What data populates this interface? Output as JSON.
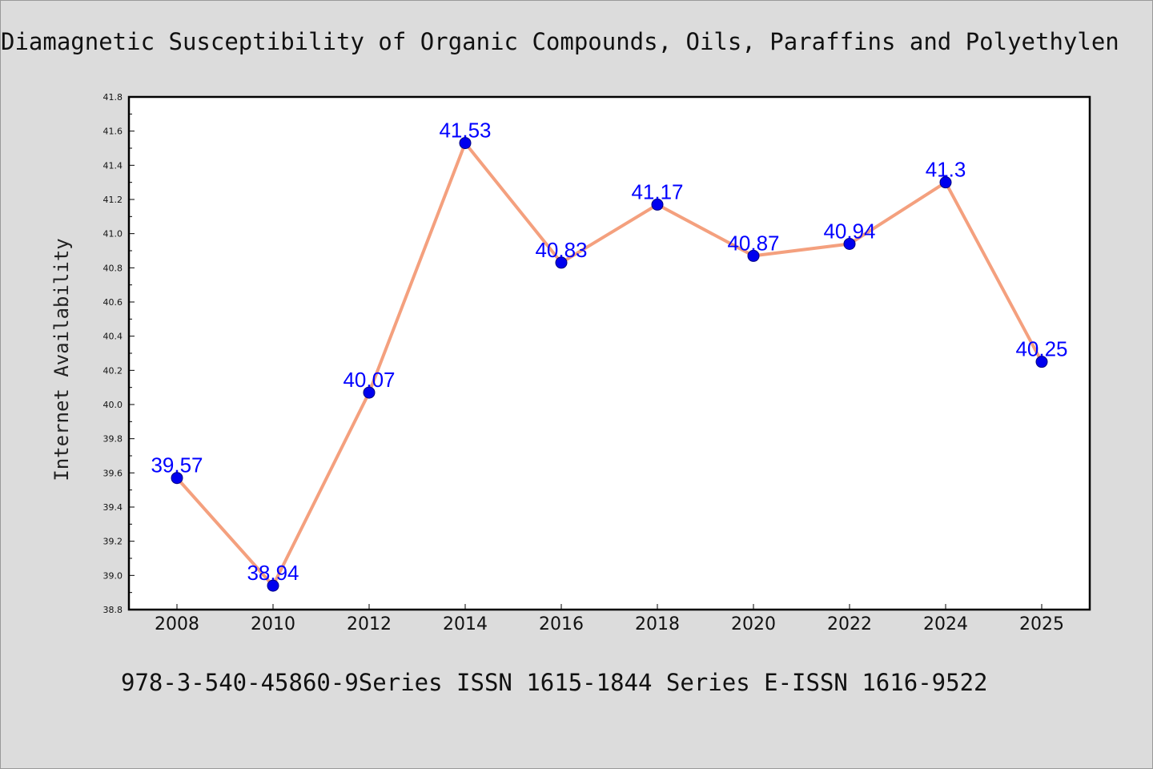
{
  "header": {
    "title": "Diamagnetic Susceptibility of Organic Compounds, Oils, Paraffins and Polyethylen"
  },
  "footer": {
    "text": "978-3-540-45860-9Series ISSN 1615-1844 Series E-ISSN 1616-9522"
  },
  "colors": {
    "background": "#dcdcdc",
    "plot_background": "#ffffff",
    "line": "#f4a07e",
    "marker": "#0000ee",
    "marker_edge": "#000080",
    "data_label": "#0000ff"
  },
  "chart_data": {
    "type": "line",
    "title": "Diamagnetic Susceptibility of Organic Compounds, Oils, Paraffins and Polyethylen",
    "xlabel": "",
    "ylabel": "Internet Availability",
    "categories": [
      "2008",
      "2010",
      "2012",
      "2014",
      "2016",
      "2018",
      "2020",
      "2022",
      "2024",
      "2025"
    ],
    "series": [
      {
        "values": [
          39.57,
          38.94,
          40.07,
          41.53,
          40.83,
          41.17,
          40.87,
          40.94,
          41.3,
          40.25
        ],
        "data_labels": [
          "39.57",
          "38.94",
          "40.07",
          "41.53",
          "40.83",
          "41.17",
          "40.87",
          "40.94",
          "41.3",
          "40.25"
        ]
      }
    ],
    "ylim": [
      38.8,
      41.8
    ],
    "yticks": [
      "38.8",
      "39.0",
      "39.2",
      "39.4",
      "39.6",
      "39.8",
      "40.0",
      "40.2",
      "40.4",
      "40.6",
      "40.8",
      "41.0",
      "41.2",
      "41.4",
      "41.6",
      "41.8"
    ],
    "grid": false,
    "legend": "none"
  }
}
